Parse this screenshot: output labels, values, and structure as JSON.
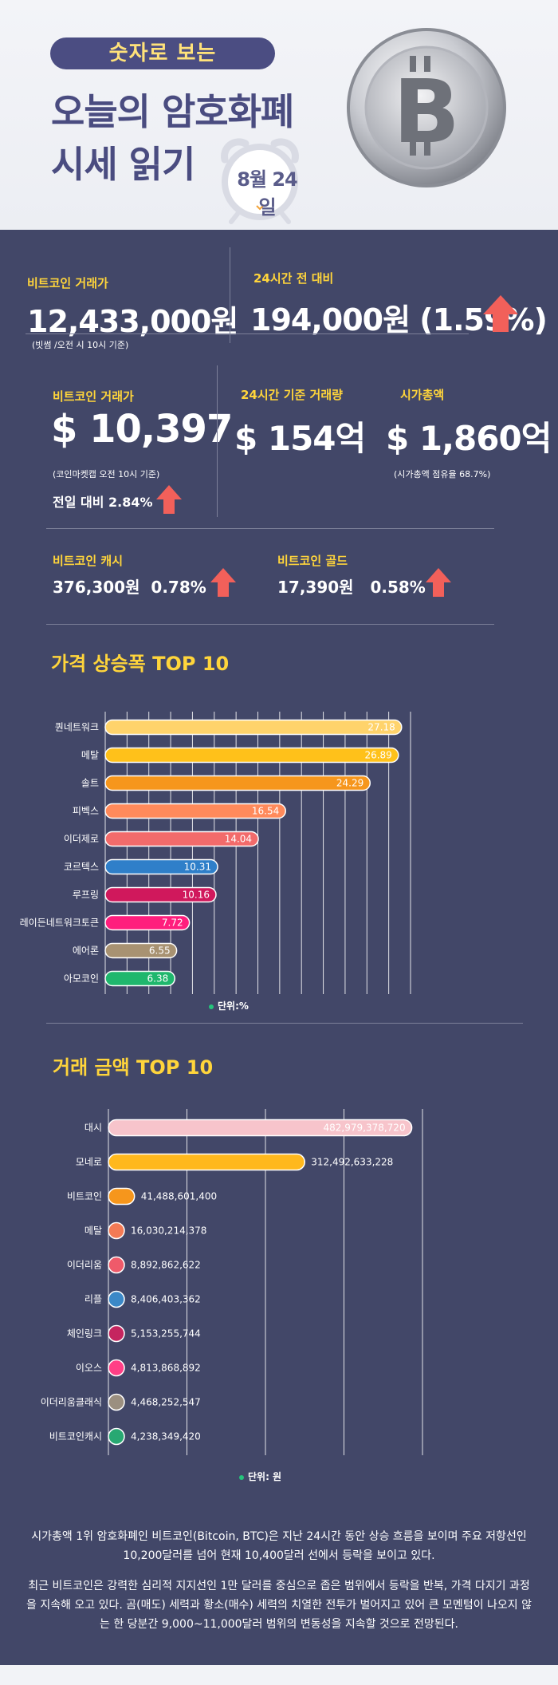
{
  "header": {
    "pill": "숫자로 보는",
    "title_line1": "오늘의 암호화폐",
    "title_line2": "시세 읽기",
    "date": "8월 24일"
  },
  "krw": {
    "label": "비트코인 거래가",
    "price": "12,433,000원",
    "note": "(빗썸 /오전 시 10시 기준)",
    "change_label": "24시간 전 대비",
    "change_value": "194,000원 (1.59%)"
  },
  "usd": {
    "label": "비트코인 거래가",
    "price": "$ 10,397",
    "note": "(코인마켓캡 오전 10시 기준)",
    "daily_change": "전일 대비 2.84%",
    "volume_label": "24시간 기준 거래량",
    "volume_value": "$ 154억",
    "cap_label": "시가총액",
    "cap_value": "$ 1,860억",
    "cap_note": "(시가총액 점유율 68.7%)"
  },
  "forks": {
    "cash_label": "비트코인 캐시",
    "cash_value": "376,300원  0.78%",
    "gold_label": "비트코인 골드",
    "gold_value": "17,390원   0.58%"
  },
  "colors": {
    "accent_yellow": "#ffd53b",
    "arrow_red": "#f2605a",
    "background": "#424768"
  },
  "rise_section": {
    "title": "가격 상승폭 TOP 10",
    "unit": "단위:%"
  },
  "volume_section": {
    "title": "거래 금액 TOP 10",
    "unit": "단위: 원"
  },
  "chart_data": [
    {
      "type": "bar",
      "orientation": "horizontal",
      "title": "가격 상승폭 TOP 10",
      "unit": "%",
      "categories": [
        "퀀네트워크",
        "메탈",
        "솔트",
        "피벡스",
        "이더제로",
        "코르텍스",
        "루프링",
        "레이든네트워크토큰",
        "에어론",
        "아모코인"
      ],
      "values": [
        27.18,
        26.89,
        24.29,
        16.54,
        14.04,
        10.31,
        10.16,
        7.72,
        6.55,
        6.38
      ],
      "value_labels": [
        "27.18",
        "26.89",
        "24.29",
        "16.54",
        "14.04",
        "10.31",
        "10.16",
        "7.72",
        "6.55",
        "6.38"
      ],
      "colors": [
        "#ffd36b",
        "#ffc11a",
        "#f6961c",
        "#ff8a5b",
        "#f26b6b",
        "#2f7fc9",
        "#d0185c",
        "#ff1e7d",
        "#a89272",
        "#1fb76d"
      ],
      "xlim": [
        0,
        28
      ],
      "grid": true
    },
    {
      "type": "bar",
      "orientation": "horizontal",
      "title": "거래 금액 TOP 10",
      "unit": "원",
      "categories": [
        "대시",
        "모네로",
        "비트코인",
        "메탈",
        "이더리움",
        "리플",
        "체인링크",
        "이오스",
        "이더리움클래식",
        "비트코인캐시"
      ],
      "values": [
        482979378720,
        312492633228,
        41488601400,
        16030214378,
        8892862622,
        8406403362,
        5153255744,
        4813868892,
        4468252547,
        4238349420
      ],
      "value_labels": [
        "482,979,378,720",
        "312,492,633,228",
        "41,488,601,400",
        "16,030,214,378",
        "8,892,862,622",
        "8,406,403,362",
        "5,153,255,744",
        "4,813,868,892",
        "4,468,252,547",
        "4,238,349,420"
      ],
      "colors": [
        "#f7c4cb",
        "#ffb81c",
        "#f6961c",
        "#f37a55",
        "#ef5a6a",
        "#3b88c7",
        "#c5255f",
        "#ff3f86",
        "#9b8f80",
        "#28a872"
      ],
      "xlim": [
        0,
        500000000000
      ],
      "grid": true
    }
  ],
  "paragraphs": [
    "시가총액 1위 암호화폐인 비트코인(Bitcoin, BTC)은 지난 24시간 동안 상승 흐름을 보이며 주요 저항선인 10,200달러를 넘어 현재 10,400달러 선에서 등락을 보이고 있다.",
    "최근 비트코인은 강력한 심리적 지지선인 1만 달러를 중심으로 좁은 범위에서 등락을 반복, 가격 다지기 과정을 지속해 오고 있다. 곰(매도) 세력과 황소(매수) 세력의 치열한 전투가 벌어지고 있어 큰 모멘텀이 나오지 않는 한 당분간 9,000~11,000달러 범위의 변동성을 지속할 것으로 전망된다."
  ]
}
